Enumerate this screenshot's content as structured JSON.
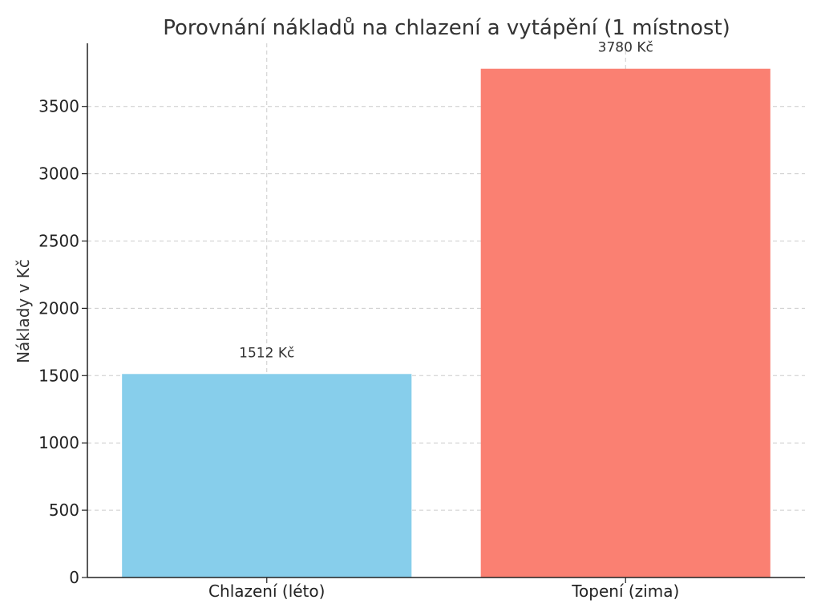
{
  "chart_data": {
    "type": "bar",
    "title": "Porovnání nákladů na chlazení a vytápění (1 místnost)",
    "xlabel": "",
    "ylabel": "Náklady v Kč",
    "categories": [
      "Chlazení (léto)",
      "Topení (zima)"
    ],
    "values": [
      1512,
      3780
    ],
    "data_labels": [
      "1512 Kč",
      "3780 Kč"
    ],
    "colors": [
      "#87CEEB",
      "#FA8072"
    ],
    "ylim": [
      0,
      3969
    ],
    "yticks": [
      0,
      500,
      1000,
      1500,
      2000,
      2500,
      3000,
      3500
    ],
    "grid": true
  }
}
